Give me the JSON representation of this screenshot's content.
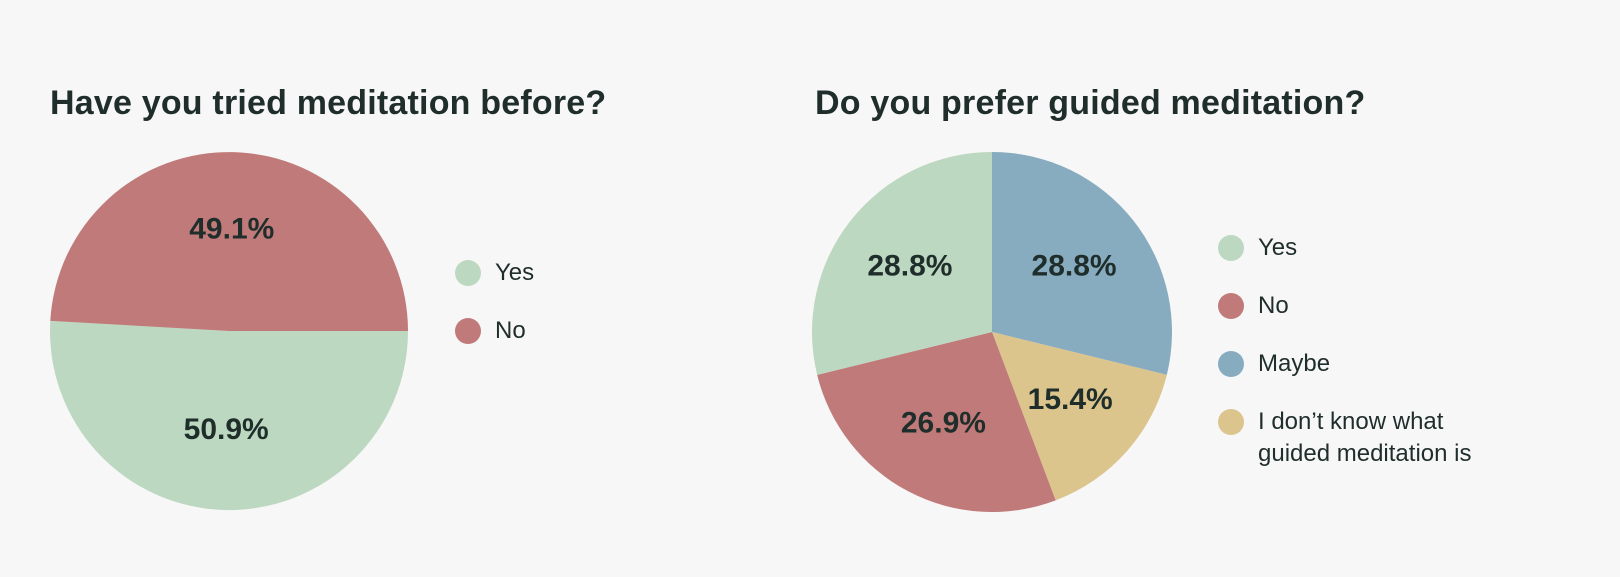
{
  "chart_data": [
    {
      "type": "pie",
      "title": "Have you tried meditation before?",
      "slices": [
        {
          "label": "Yes",
          "value": 50.9,
          "value_label": "50.9%",
          "color": "#bdd8c0"
        },
        {
          "label": "No",
          "value": 49.1,
          "value_label": "49.1%",
          "color": "#bf7a79"
        }
      ],
      "legend_placement": "right"
    },
    {
      "type": "pie",
      "title": "Do you prefer guided meditation?",
      "slices": [
        {
          "label": "Maybe",
          "value": 28.8,
          "value_label": "28.8%",
          "color": "#87abbf"
        },
        {
          "label": "I don’t know what guided meditation is",
          "value": 15.4,
          "value_label": "15.4%",
          "color": "#dcc48d"
        },
        {
          "label": "No",
          "value": 26.9,
          "value_label": "26.9%",
          "color": "#bf7a79"
        },
        {
          "label": "Yes",
          "value": 28.8,
          "value_label": "28.8%",
          "color": "#bdd8c0"
        }
      ],
      "legend": [
        {
          "label": "Yes",
          "color": "#bdd8c0"
        },
        {
          "label": "No",
          "color": "#bf7a79"
        },
        {
          "label": "Maybe",
          "color": "#87abbf"
        },
        {
          "label": "I don’t know what\nguided meditation is",
          "color": "#dcc48d"
        }
      ],
      "legend_placement": "right"
    }
  ]
}
